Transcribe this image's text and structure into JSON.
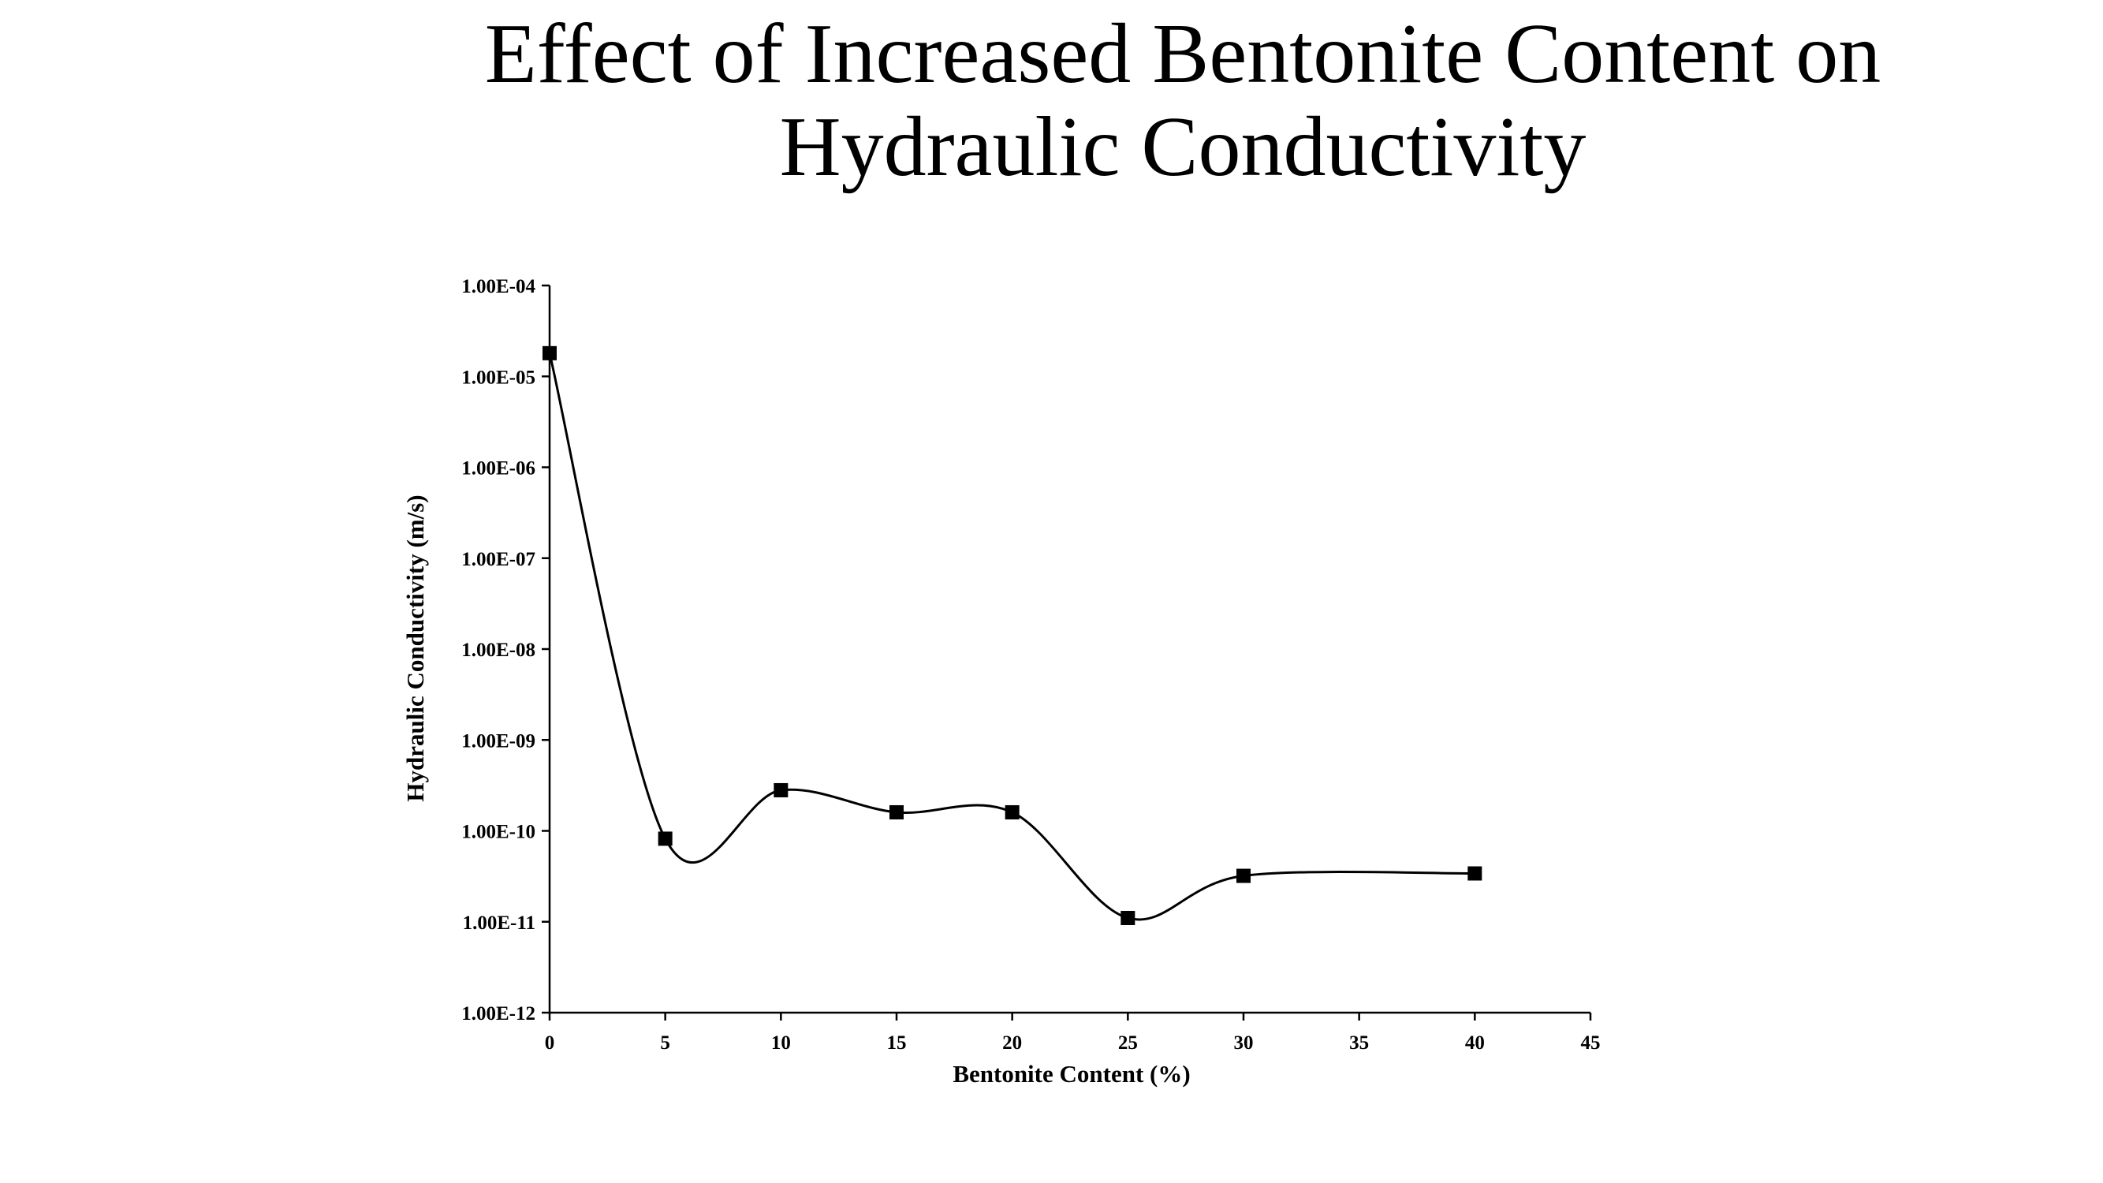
{
  "title_lines": [
    "Effect of Increased Bentonite Content on",
    "Hydraulic Conductivity"
  ],
  "chart_data": {
    "type": "scatter",
    "title": "Effect of Increased Bentonite Content on Hydraulic Conductivity",
    "xlabel": "Bentonite Content (%)",
    "ylabel": "Hydraulic Conductivity (m/s)",
    "xlim": [
      0,
      45
    ],
    "ylim": [
      1e-12,
      0.0001
    ],
    "yscale": "log",
    "x_ticks": [
      0,
      5,
      10,
      15,
      20,
      25,
      30,
      35,
      40,
      45
    ],
    "x_tick_labels": [
      "0",
      "5",
      "10",
      "15",
      "20",
      "25",
      "30",
      "35",
      "40",
      "45"
    ],
    "y_ticks": [
      1e-12,
      1e-11,
      1e-10,
      1e-09,
      1e-08,
      1e-07,
      1e-06,
      1e-05,
      0.0001
    ],
    "y_tick_labels": [
      "1.00E-12",
      "1.00E-11",
      "1.00E-10",
      "1.00E-09",
      "1.00E-08",
      "1.00E-07",
      "1.00E-06",
      "1.00E-05",
      "1.00E-04"
    ],
    "grid": false,
    "legend": "none",
    "line_style": "smoothed",
    "marker": "square",
    "color": "#000000",
    "series": [
      {
        "x": [
          0,
          5,
          10,
          15,
          20,
          25,
          30,
          40
        ],
        "y": [
          1.8e-05,
          8.2e-11,
          2.8e-10,
          1.6e-10,
          1.6e-10,
          1.1e-11,
          3.2e-11,
          3.4e-11
        ]
      }
    ]
  }
}
